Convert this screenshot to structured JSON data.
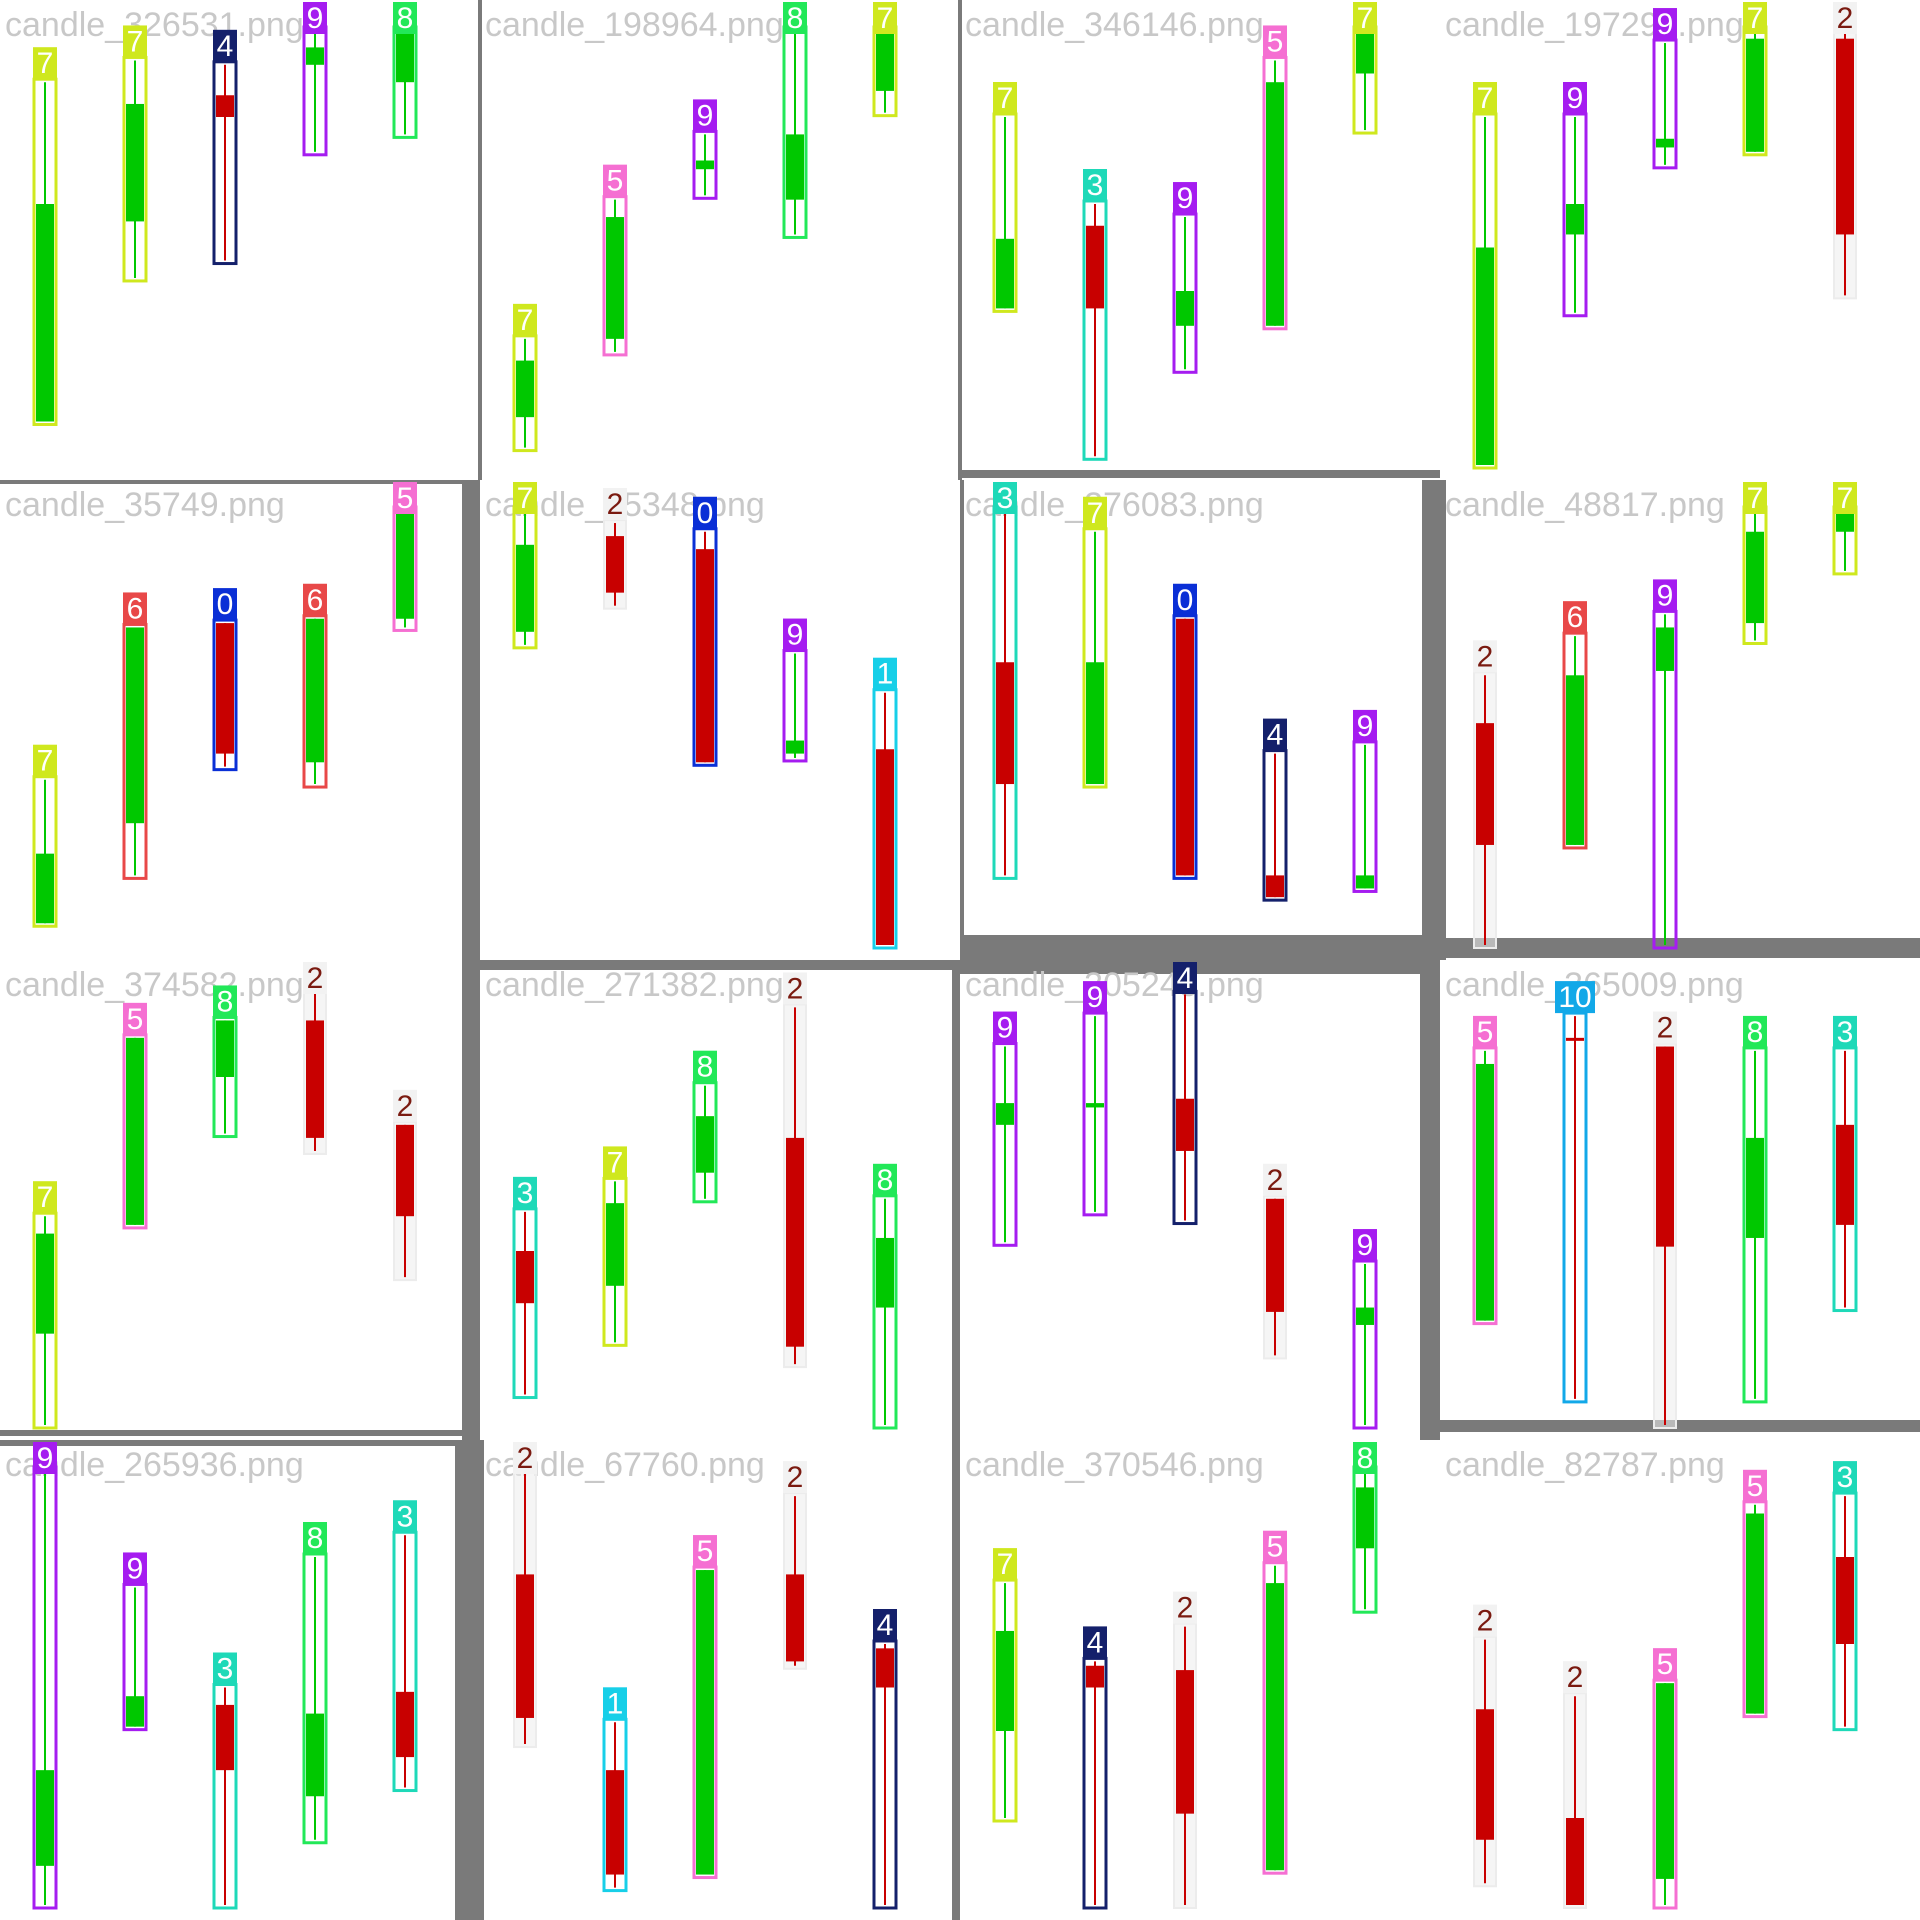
{
  "colors": {
    "up": "#00c800",
    "down": "#c80000",
    "class_colors": {
      "0": "#0a2fd6",
      "1": "#17cfe8",
      "2": "#f2f2f2",
      "3": "#1ed9b8",
      "4": "#14206b",
      "5": "#f56fd2",
      "6": "#e84848",
      "7": "#cfe81e",
      "8": "#22e858",
      "9": "#a51cf0",
      "10": "#12a8e8"
    },
    "dark_label_text": "#7a1a10"
  },
  "chart_data": [
    {
      "type": "candlestick_detection",
      "filename": "candle_326531.png",
      "candles": [
        {
          "label": "7",
          "dir": "up",
          "o": 0.1,
          "c": 0.6,
          "h": 0.88,
          "l": 0.1
        },
        {
          "label": "7",
          "dir": "up",
          "o": 0.56,
          "c": 0.83,
          "h": 0.93,
          "l": 0.43
        },
        {
          "label": "4",
          "dir": "down",
          "o": 0.85,
          "c": 0.8,
          "h": 0.92,
          "l": 0.47
        },
        {
          "label": "9",
          "dir": "up",
          "o": 0.92,
          "c": 0.96,
          "h": 1.0,
          "l": 0.72
        },
        {
          "label": "8",
          "dir": "up",
          "o": 0.88,
          "c": 1.0,
          "h": 1.0,
          "l": 0.76
        }
      ]
    },
    {
      "type": "candlestick_detection",
      "filename": "candle_198964.png",
      "candles": [
        {
          "label": "7",
          "dir": "up",
          "o": 0.11,
          "c": 0.24,
          "h": 0.29,
          "l": 0.04
        },
        {
          "label": "5",
          "dir": "up",
          "o": 0.29,
          "c": 0.57,
          "h": 0.61,
          "l": 0.26
        },
        {
          "label": "9",
          "dir": "up",
          "o": 0.68,
          "c": 0.7,
          "h": 0.76,
          "l": 0.62
        },
        {
          "label": "8",
          "dir": "up",
          "o": 0.61,
          "c": 0.76,
          "h": 1.0,
          "l": 0.53
        },
        {
          "label": "7",
          "dir": "up",
          "o": 0.86,
          "c": 1.0,
          "h": 1.0,
          "l": 0.81
        }
      ]
    },
    {
      "type": "candlestick_detection",
      "filename": "candle_346146.png",
      "candles": [
        {
          "label": "7",
          "dir": "up",
          "o": 0.36,
          "c": 0.52,
          "h": 0.8,
          "l": 0.36
        },
        {
          "label": "3",
          "dir": "down",
          "o": 0.55,
          "c": 0.36,
          "h": 0.6,
          "l": 0.02
        },
        {
          "label": "9",
          "dir": "up",
          "o": 0.32,
          "c": 0.4,
          "h": 0.57,
          "l": 0.22
        },
        {
          "label": "5",
          "dir": "up",
          "o": 0.32,
          "c": 0.88,
          "h": 0.93,
          "l": 0.32
        },
        {
          "label": "7",
          "dir": "up",
          "o": 0.9,
          "c": 1.0,
          "h": 1.0,
          "l": 0.77
        }
      ]
    },
    {
      "type": "candlestick_detection",
      "filename": "candle_197294.png",
      "candles": [
        {
          "label": "7",
          "dir": "up",
          "o": 0.0,
          "c": 0.5,
          "h": 0.8,
          "l": 0.0
        },
        {
          "label": "9",
          "dir": "up",
          "o": 0.53,
          "c": 0.6,
          "h": 0.8,
          "l": 0.35
        },
        {
          "label": "9",
          "dir": "up",
          "o": 0.73,
          "c": 0.75,
          "h": 0.97,
          "l": 0.69
        },
        {
          "label": "7",
          "dir": "up",
          "o": 0.72,
          "c": 0.98,
          "h": 1.0,
          "l": 0.72
        },
        {
          "label": "2",
          "dir": "down",
          "o": 0.98,
          "c": 0.53,
          "h": 1.0,
          "l": 0.39
        }
      ]
    },
    {
      "type": "candlestick_detection",
      "filename": "candle_35749.png",
      "candles": [
        {
          "label": "7",
          "dir": "up",
          "o": 0.05,
          "c": 0.21,
          "h": 0.38,
          "l": 0.05
        },
        {
          "label": "6",
          "dir": "up",
          "o": 0.28,
          "c": 0.73,
          "h": 0.73,
          "l": 0.16
        },
        {
          "label": "0",
          "dir": "down",
          "o": 0.74,
          "c": 0.44,
          "h": 0.74,
          "l": 0.41
        },
        {
          "label": "6",
          "dir": "up",
          "o": 0.42,
          "c": 0.75,
          "h": 0.75,
          "l": 0.37
        },
        {
          "label": "5",
          "dir": "up",
          "o": 0.75,
          "c": 1.0,
          "h": 1.0,
          "l": 0.73
        }
      ]
    },
    {
      "type": "candlestick_detection",
      "filename": "candle_65348.png",
      "candles": [
        {
          "label": "7",
          "dir": "up",
          "o": 0.72,
          "c": 0.92,
          "h": 1.0,
          "l": 0.69
        },
        {
          "label": "2",
          "dir": "down",
          "o": 0.94,
          "c": 0.81,
          "h": 0.97,
          "l": 0.78
        },
        {
          "label": "0",
          "dir": "down",
          "o": 0.91,
          "c": 0.42,
          "h": 0.95,
          "l": 0.42
        },
        {
          "label": "9",
          "dir": "up",
          "o": 0.44,
          "c": 0.47,
          "h": 0.67,
          "l": 0.43
        },
        {
          "label": "1",
          "dir": "down",
          "o": 0.45,
          "c": 0.0,
          "h": 0.58,
          "l": 0.0
        }
      ]
    },
    {
      "type": "candlestick_detection",
      "filename": "candle_376083.png",
      "candles": [
        {
          "label": "3",
          "dir": "down",
          "o": 0.65,
          "c": 0.37,
          "h": 1.0,
          "l": 0.16
        },
        {
          "label": "7",
          "dir": "up",
          "o": 0.37,
          "c": 0.65,
          "h": 0.95,
          "l": 0.37
        },
        {
          "label": "0",
          "dir": "down",
          "o": 0.75,
          "c": 0.16,
          "h": 0.75,
          "l": 0.16
        },
        {
          "label": "4",
          "dir": "down",
          "o": 0.16,
          "c": 0.11,
          "h": 0.44,
          "l": 0.11
        },
        {
          "label": "9",
          "dir": "up",
          "o": 0.13,
          "c": 0.16,
          "h": 0.46,
          "l": 0.13
        }
      ]
    },
    {
      "type": "candlestick_detection",
      "filename": "candle_48817.png",
      "candles": [
        {
          "label": "2",
          "dir": "down",
          "o": 0.51,
          "c": 0.23,
          "h": 0.62,
          "l": 0.0
        },
        {
          "label": "6",
          "dir": "up",
          "o": 0.23,
          "c": 0.62,
          "h": 0.71,
          "l": 0.23
        },
        {
          "label": "9",
          "dir": "up",
          "o": 0.63,
          "c": 0.73,
          "h": 0.76,
          "l": 0.0
        },
        {
          "label": "7",
          "dir": "up",
          "o": 0.74,
          "c": 0.95,
          "h": 1.0,
          "l": 0.7
        },
        {
          "label": "7",
          "dir": "up",
          "o": 0.95,
          "c": 1.0,
          "h": 1.0,
          "l": 0.86
        }
      ]
    },
    {
      "type": "candlestick_detection",
      "filename": "candle_374582.png",
      "candles": [
        {
          "label": "7",
          "dir": "up",
          "o": 0.21,
          "c": 0.44,
          "h": 0.48,
          "l": 0.0
        },
        {
          "label": "5",
          "dir": "up",
          "o": 0.46,
          "c": 0.89,
          "h": 0.89,
          "l": 0.46
        },
        {
          "label": "8",
          "dir": "up",
          "o": 0.8,
          "c": 0.93,
          "h": 0.93,
          "l": 0.67
        },
        {
          "label": "2",
          "dir": "down",
          "o": 0.93,
          "c": 0.66,
          "h": 1.0,
          "l": 0.63
        },
        {
          "label": "2",
          "dir": "down",
          "o": 0.69,
          "c": 0.48,
          "h": 0.69,
          "l": 0.34
        }
      ]
    },
    {
      "type": "candlestick_detection",
      "filename": "candle_271382.png",
      "candles": [
        {
          "label": "3",
          "dir": "down",
          "o": 0.4,
          "c": 0.28,
          "h": 0.49,
          "l": 0.07
        },
        {
          "label": "7",
          "dir": "up",
          "o": 0.32,
          "c": 0.51,
          "h": 0.56,
          "l": 0.19
        },
        {
          "label": "8",
          "dir": "up",
          "o": 0.58,
          "c": 0.71,
          "h": 0.78,
          "l": 0.52
        },
        {
          "label": "2",
          "dir": "down",
          "o": 0.66,
          "c": 0.18,
          "h": 0.96,
          "l": 0.14
        },
        {
          "label": "8",
          "dir": "up",
          "o": 0.27,
          "c": 0.43,
          "h": 0.52,
          "l": 0.0
        }
      ]
    },
    {
      "type": "candlestick_detection",
      "filename": "candle_305243.png",
      "candles": [
        {
          "label": "9",
          "dir": "up",
          "o": 0.69,
          "c": 0.74,
          "h": 0.87,
          "l": 0.42
        },
        {
          "label": "9",
          "dir": "up",
          "o": 0.73,
          "c": 0.74,
          "h": 0.94,
          "l": 0.49
        },
        {
          "label": "4",
          "dir": "down",
          "o": 0.75,
          "c": 0.63,
          "h": 0.99,
          "l": 0.47
        },
        {
          "label": "2",
          "dir": "down",
          "o": 0.52,
          "c": 0.26,
          "h": 0.52,
          "l": 0.16
        },
        {
          "label": "9",
          "dir": "up",
          "o": 0.23,
          "c": 0.27,
          "h": 0.37,
          "l": 0.0
        }
      ]
    },
    {
      "type": "candlestick_detection",
      "filename": "candle_365009.png",
      "candles": [
        {
          "label": "5",
          "dir": "up",
          "o": 0.24,
          "c": 0.83,
          "h": 0.86,
          "l": 0.24
        },
        {
          "label": "10",
          "dir": "down",
          "o": 0.89,
          "c": 0.89,
          "h": 0.94,
          "l": 0.06
        },
        {
          "label": "2",
          "dir": "down",
          "o": 0.87,
          "c": 0.41,
          "h": 0.87,
          "l": 0.0
        },
        {
          "label": "8",
          "dir": "up",
          "o": 0.43,
          "c": 0.66,
          "h": 0.86,
          "l": 0.06
        },
        {
          "label": "3",
          "dir": "down",
          "o": 0.69,
          "c": 0.46,
          "h": 0.86,
          "l": 0.27
        }
      ]
    },
    {
      "type": "candlestick_detection",
      "filename": "candle_265936.png",
      "candles": [
        {
          "label": "9",
          "dir": "up",
          "o": 0.09,
          "c": 0.31,
          "h": 1.0,
          "l": 0.0
        },
        {
          "label": "9",
          "dir": "up",
          "o": 0.41,
          "c": 0.48,
          "h": 0.73,
          "l": 0.41
        },
        {
          "label": "3",
          "dir": "down",
          "o": 0.46,
          "c": 0.31,
          "h": 0.5,
          "l": 0.0
        },
        {
          "label": "8",
          "dir": "up",
          "o": 0.25,
          "c": 0.44,
          "h": 0.8,
          "l": 0.15
        },
        {
          "label": "3",
          "dir": "down",
          "o": 0.49,
          "c": 0.34,
          "h": 0.85,
          "l": 0.27
        }
      ]
    },
    {
      "type": "candlestick_detection",
      "filename": "candle_67760.png",
      "candles": [
        {
          "label": "2",
          "dir": "down",
          "o": 0.76,
          "c": 0.43,
          "h": 1.0,
          "l": 0.37
        },
        {
          "label": "1",
          "dir": "down",
          "o": 0.31,
          "c": 0.07,
          "h": 0.42,
          "l": 0.04
        },
        {
          "label": "5",
          "dir": "up",
          "o": 0.07,
          "c": 0.77,
          "h": 0.77,
          "l": 0.07
        },
        {
          "label": "2",
          "dir": "down",
          "o": 0.76,
          "c": 0.56,
          "h": 0.94,
          "l": 0.55
        },
        {
          "label": "4",
          "dir": "down",
          "o": 0.59,
          "c": 0.5,
          "h": 0.6,
          "l": 0.0
        }
      ]
    },
    {
      "type": "candlestick_detection",
      "filename": "candle_370546.png",
      "candles": [
        {
          "label": "7",
          "dir": "up",
          "o": 0.4,
          "c": 0.63,
          "h": 0.74,
          "l": 0.2
        },
        {
          "label": "4",
          "dir": "down",
          "o": 0.55,
          "c": 0.5,
          "h": 0.56,
          "l": 0.0
        },
        {
          "label": "2",
          "dir": "down",
          "o": 0.54,
          "c": 0.21,
          "h": 0.64,
          "l": 0.0
        },
        {
          "label": "5",
          "dir": "up",
          "o": 0.08,
          "c": 0.74,
          "h": 0.78,
          "l": 0.08
        },
        {
          "label": "8",
          "dir": "up",
          "o": 0.82,
          "c": 0.96,
          "h": 1.0,
          "l": 0.68
        }
      ]
    },
    {
      "type": "candlestick_detection",
      "filename": "candle_82787.png",
      "candles": [
        {
          "label": "2",
          "dir": "down",
          "o": 0.45,
          "c": 0.15,
          "h": 0.61,
          "l": 0.05
        },
        {
          "label": "2",
          "dir": "down",
          "o": 0.2,
          "c": 0.0,
          "h": 0.48,
          "l": 0.0
        },
        {
          "label": "5",
          "dir": "up",
          "o": 0.06,
          "c": 0.51,
          "h": 0.51,
          "l": 0.0
        },
        {
          "label": "5",
          "dir": "up",
          "o": 0.44,
          "c": 0.9,
          "h": 0.92,
          "l": 0.44
        },
        {
          "label": "3",
          "dir": "down",
          "o": 0.8,
          "c": 0.6,
          "h": 0.94,
          "l": 0.41
        }
      ]
    }
  ]
}
